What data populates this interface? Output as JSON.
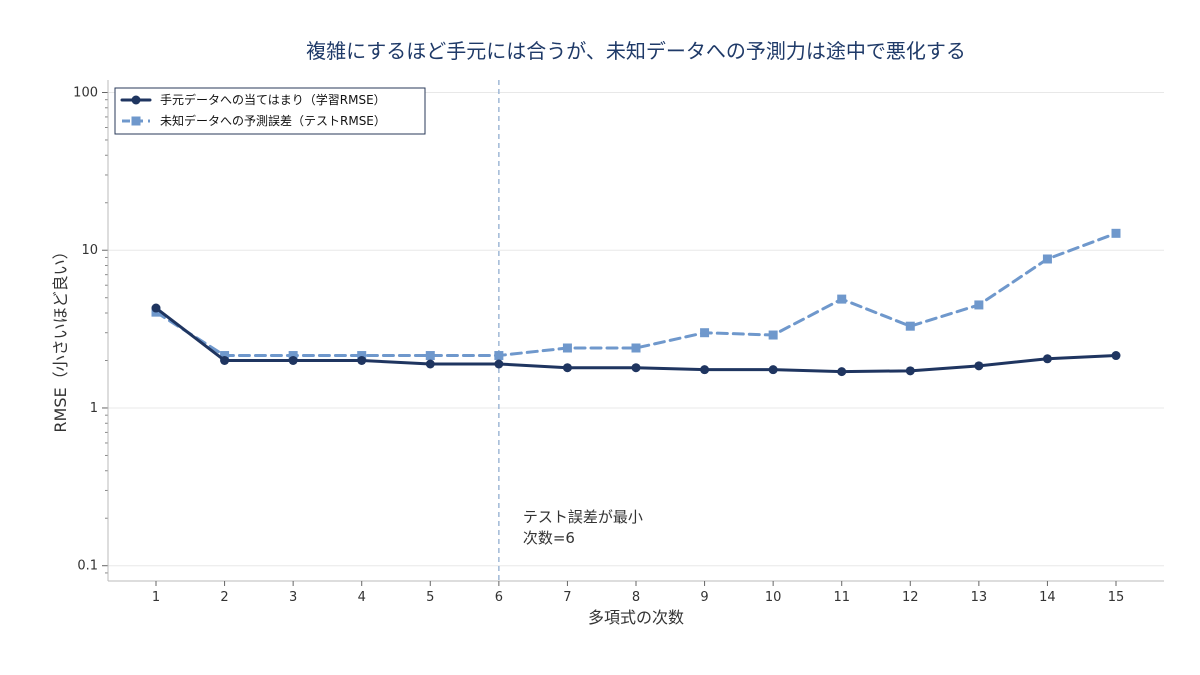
{
  "chart_data": {
    "type": "line",
    "title": "複雑にするほど手元には合うが、未知データへの予測力は途中で悪化する",
    "xlabel": "多項式の次数",
    "ylabel": "RMSE（小さいほど良い）",
    "x": [
      1,
      2,
      3,
      4,
      5,
      6,
      7,
      8,
      9,
      10,
      11,
      12,
      13,
      14,
      15
    ],
    "x_tick_labels": [
      "1",
      "2",
      "3",
      "4",
      "5",
      "6",
      "7",
      "8",
      "9",
      "10",
      "11",
      "12",
      "13",
      "14",
      "15"
    ],
    "y_scale": "log",
    "ylim": [
      0.08,
      120
    ],
    "y_ticks": [
      0.1,
      1,
      10,
      100
    ],
    "y_tick_labels": [
      "0.1",
      "1",
      "10",
      "100"
    ],
    "grid": "horizontal",
    "legend_position": "top-left",
    "series": [
      {
        "name": "手元データへの当てはまり（学習RMSE）",
        "values": [
          4.3,
          2.0,
          2.0,
          2.0,
          1.9,
          1.9,
          1.8,
          1.8,
          1.75,
          1.75,
          1.7,
          1.72,
          1.85,
          2.05,
          2.15
        ],
        "color": "#1f3560",
        "line_style": "solid",
        "marker": "circle"
      },
      {
        "name": "未知データへの予測誤差（テストRMSE）",
        "values": [
          4.05,
          2.15,
          2.15,
          2.15,
          2.15,
          2.15,
          2.4,
          2.4,
          3.0,
          2.9,
          4.9,
          3.3,
          4.5,
          8.8,
          12.8
        ],
        "color": "#6f98cc",
        "line_style": "dashed",
        "marker": "square"
      }
    ],
    "reference_line": {
      "x": 6,
      "color": "#9fb8d6"
    },
    "annotation": {
      "lines": [
        "テスト誤差が最小",
        "次数=6"
      ]
    }
  }
}
